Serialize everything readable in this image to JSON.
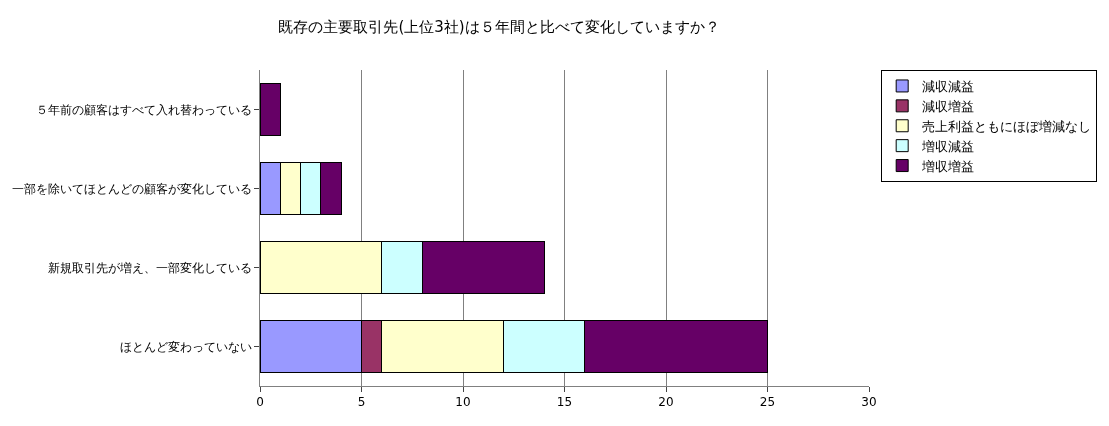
{
  "chart_data": {
    "type": "bar",
    "orientation": "horizontal",
    "stacked": true,
    "title": "既存の主要取引先(上位3社)は５年間と比べて変化していますか？",
    "categories": [
      "５年前の顧客はすべて入れ替わっている",
      "一部を除いてほとんどの顧客が変化している",
      "新規取引先が増え、一部変化している",
      "ほとんど変わっていない"
    ],
    "series": [
      {
        "name": "減収減益",
        "color": "#9999ff",
        "values": [
          0,
          1,
          0,
          5
        ]
      },
      {
        "name": "減収増益",
        "color": "#993366",
        "values": [
          0,
          0,
          0,
          1
        ]
      },
      {
        "name": "売上利益ともにほぼ増減なし",
        "color": "#ffffcc",
        "values": [
          0,
          1,
          6,
          6
        ]
      },
      {
        "name": "増収減益",
        "color": "#ccffff",
        "values": [
          0,
          1,
          2,
          4
        ]
      },
      {
        "name": "増収増益",
        "color": "#660066",
        "values": [
          1,
          1,
          6,
          9
        ]
      }
    ],
    "xlim": [
      0,
      30
    ],
    "xticks": [
      0,
      5,
      10,
      15,
      20,
      25,
      30
    ],
    "grid": "x",
    "legend": "right"
  }
}
